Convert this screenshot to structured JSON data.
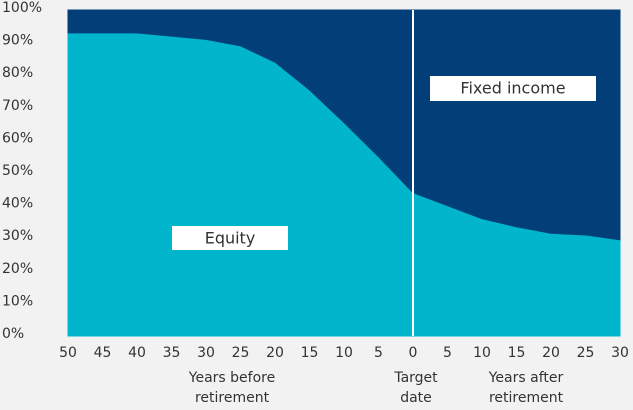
{
  "chart_data": {
    "type": "stacked_area",
    "categories": [
      50,
      45,
      40,
      35,
      30,
      25,
      20,
      15,
      10,
      5,
      0,
      5,
      10,
      15,
      20,
      25,
      30
    ],
    "series": [
      {
        "name": "Equity",
        "color": "#00b5cc",
        "values": [
          93,
          93,
          93,
          92,
          91,
          89,
          84,
          75.5,
          65.5,
          55,
          44,
          40,
          36,
          33.5,
          31.5,
          31,
          29.5
        ]
      },
      {
        "name": "Fixed income",
        "color": "#023e78",
        "values": [
          7,
          7,
          7,
          8,
          9,
          11,
          16,
          24.5,
          34.5,
          45,
          56,
          60,
          64,
          66.5,
          68.5,
          69,
          70.5
        ]
      }
    ],
    "ylim": [
      0,
      100
    ],
    "yticks": [
      {
        "value": 0,
        "label": "0%"
      },
      {
        "value": 10,
        "label": "10%"
      },
      {
        "value": 20,
        "label": "20%"
      },
      {
        "value": 30,
        "label": "30%"
      },
      {
        "value": 40,
        "label": "40%"
      },
      {
        "value": 50,
        "label": "50%"
      },
      {
        "value": 60,
        "label": "60%"
      },
      {
        "value": 70,
        "label": "70%"
      },
      {
        "value": 80,
        "label": "80%"
      },
      {
        "value": 90,
        "label": "90%"
      },
      {
        "value": 100,
        "label": "100%"
      }
    ],
    "xlabel_groups": [
      [
        "Years before",
        "retirement"
      ],
      [
        "Target",
        "date"
      ],
      [
        "Years after",
        "retirement"
      ]
    ]
  }
}
